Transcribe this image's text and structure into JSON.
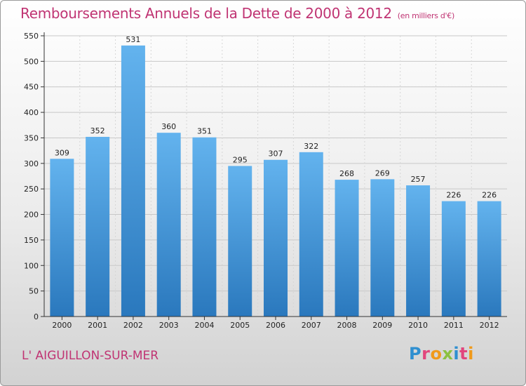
{
  "title": "Remboursements Annuels de la Dette de 2000 à 2012",
  "unit": "(en milliers d'€)",
  "subject": "L' AIGUILLON-SUR-MER",
  "logo": {
    "letters": [
      {
        "ch": "P",
        "color": "#2f8fd0"
      },
      {
        "ch": "r",
        "color": "#e2467d"
      },
      {
        "ch": "o",
        "color": "#f09a1a"
      },
      {
        "ch": "x",
        "color": "#8cc13f"
      },
      {
        "ch": "i",
        "color": "#2f8fd0"
      },
      {
        "ch": "t",
        "color": "#e2467d"
      },
      {
        "ch": "i",
        "color": "#f09a1a"
      }
    ]
  },
  "colors": {
    "title": "#c03473",
    "bar_light": "#63b3ee",
    "bar_dark": "#2a78bd"
  },
  "chart_data": {
    "type": "bar",
    "categories": [
      "2000",
      "2001",
      "2002",
      "2003",
      "2004",
      "2005",
      "2006",
      "2007",
      "2008",
      "2009",
      "2010",
      "2011",
      "2012"
    ],
    "values": [
      309,
      352,
      531,
      360,
      351,
      295,
      307,
      322,
      268,
      269,
      257,
      226,
      226
    ],
    "ylim": [
      0,
      550
    ],
    "yticks": [
      0,
      50,
      100,
      150,
      200,
      250,
      300,
      350,
      400,
      450,
      500,
      550
    ],
    "grid": true,
    "xlabel": "",
    "ylabel": ""
  }
}
